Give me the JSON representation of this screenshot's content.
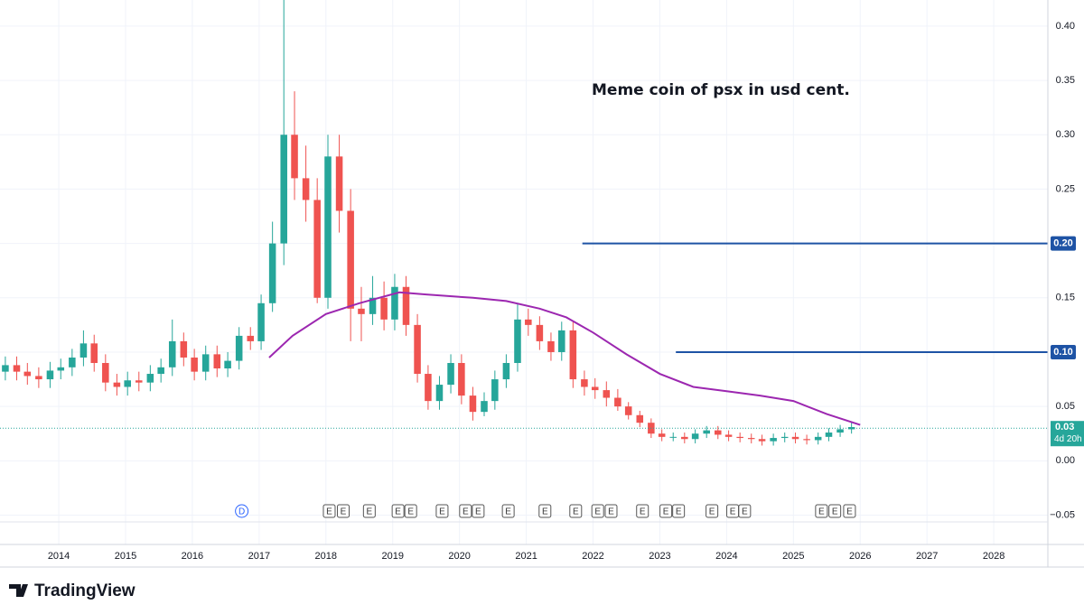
{
  "brand": "TradingView",
  "chart_data": {
    "type": "candlestick",
    "annotation": "Meme coin of psx in usd cent.",
    "colors": {
      "up": "#26a69a",
      "down": "#ef5350"
    },
    "x": [
      2013.2,
      2013.37,
      2013.53,
      2013.7,
      2013.87,
      2014.03,
      2014.2,
      2014.37,
      2014.53,
      2014.7,
      2014.87,
      2015.03,
      2015.2,
      2015.37,
      2015.53,
      2015.7,
      2015.87,
      2016.03,
      2016.2,
      2016.37,
      2016.53,
      2016.7,
      2016.87,
      2017.03,
      2017.2,
      2017.37,
      2017.53,
      2017.7,
      2017.87,
      2018.03,
      2018.2,
      2018.37,
      2018.53,
      2018.7,
      2018.87,
      2019.03,
      2019.2,
      2019.37,
      2019.53,
      2019.7,
      2019.87,
      2020.03,
      2020.2,
      2020.37,
      2020.53,
      2020.7,
      2020.87,
      2021.03,
      2021.2,
      2021.37,
      2021.53,
      2021.7,
      2021.87,
      2022.03,
      2022.2,
      2022.37,
      2022.53,
      2022.7,
      2022.87,
      2023.03,
      2023.2,
      2023.37,
      2023.53,
      2023.7,
      2023.87,
      2024.03,
      2024.2,
      2024.37,
      2024.53,
      2024.7,
      2024.87,
      2025.03,
      2025.2,
      2025.37,
      2025.53,
      2025.7,
      2025.87
    ],
    "open": [
      0.082,
      0.088,
      0.082,
      0.078,
      0.075,
      0.083,
      0.086,
      0.095,
      0.108,
      0.09,
      0.072,
      0.068,
      0.074,
      0.072,
      0.08,
      0.086,
      0.11,
      0.095,
      0.082,
      0.098,
      0.085,
      0.092,
      0.115,
      0.11,
      0.145,
      0.2,
      0.3,
      0.26,
      0.24,
      0.15,
      0.28,
      0.23,
      0.14,
      0.135,
      0.15,
      0.13,
      0.16,
      0.125,
      0.08,
      0.055,
      0.07,
      0.09,
      0.06,
      0.045,
      0.055,
      0.075,
      0.09,
      0.13,
      0.125,
      0.11,
      0.1,
      0.12,
      0.075,
      0.068,
      0.065,
      0.058,
      0.05,
      0.042,
      0.035,
      0.025,
      0.022,
      0.022,
      0.02,
      0.025,
      0.028,
      0.024,
      0.022,
      0.021,
      0.02,
      0.018,
      0.021,
      0.022,
      0.02,
      0.019,
      0.022,
      0.026,
      0.029
    ],
    "high": [
      0.096,
      0.096,
      0.09,
      0.086,
      0.091,
      0.094,
      0.103,
      0.12,
      0.116,
      0.098,
      0.08,
      0.082,
      0.082,
      0.088,
      0.094,
      0.13,
      0.118,
      0.103,
      0.106,
      0.106,
      0.1,
      0.123,
      0.123,
      0.153,
      0.22,
      0.43,
      0.34,
      0.29,
      0.26,
      0.3,
      0.3,
      0.25,
      0.16,
      0.17,
      0.165,
      0.172,
      0.17,
      0.135,
      0.088,
      0.078,
      0.098,
      0.098,
      0.068,
      0.063,
      0.083,
      0.098,
      0.145,
      0.14,
      0.133,
      0.118,
      0.128,
      0.128,
      0.083,
      0.076,
      0.073,
      0.066,
      0.054,
      0.046,
      0.039,
      0.029,
      0.026,
      0.026,
      0.029,
      0.032,
      0.032,
      0.028,
      0.026,
      0.025,
      0.024,
      0.025,
      0.026,
      0.026,
      0.024,
      0.026,
      0.03,
      0.033,
      0.036
    ],
    "low": [
      0.074,
      0.074,
      0.07,
      0.067,
      0.067,
      0.075,
      0.078,
      0.087,
      0.082,
      0.064,
      0.06,
      0.06,
      0.064,
      0.064,
      0.072,
      0.078,
      0.087,
      0.074,
      0.074,
      0.077,
      0.077,
      0.084,
      0.102,
      0.102,
      0.137,
      0.18,
      0.24,
      0.22,
      0.145,
      0.14,
      0.21,
      0.11,
      0.11,
      0.125,
      0.12,
      0.12,
      0.115,
      0.072,
      0.047,
      0.047,
      0.062,
      0.052,
      0.037,
      0.041,
      0.047,
      0.067,
      0.082,
      0.115,
      0.102,
      0.092,
      0.092,
      0.067,
      0.06,
      0.057,
      0.05,
      0.046,
      0.038,
      0.031,
      0.021,
      0.018,
      0.018,
      0.016,
      0.016,
      0.021,
      0.02,
      0.018,
      0.017,
      0.016,
      0.014,
      0.014,
      0.017,
      0.016,
      0.015,
      0.015,
      0.018,
      0.022,
      0.025
    ],
    "close": [
      0.088,
      0.082,
      0.078,
      0.075,
      0.083,
      0.086,
      0.095,
      0.108,
      0.09,
      0.072,
      0.068,
      0.074,
      0.072,
      0.08,
      0.086,
      0.11,
      0.095,
      0.082,
      0.098,
      0.085,
      0.092,
      0.115,
      0.11,
      0.145,
      0.2,
      0.3,
      0.26,
      0.24,
      0.15,
      0.28,
      0.23,
      0.14,
      0.135,
      0.15,
      0.13,
      0.16,
      0.125,
      0.08,
      0.055,
      0.07,
      0.09,
      0.06,
      0.045,
      0.055,
      0.075,
      0.09,
      0.13,
      0.125,
      0.11,
      0.1,
      0.12,
      0.075,
      0.068,
      0.065,
      0.058,
      0.05,
      0.042,
      0.035,
      0.025,
      0.022,
      0.022,
      0.02,
      0.025,
      0.028,
      0.024,
      0.022,
      0.021,
      0.02,
      0.018,
      0.021,
      0.022,
      0.02,
      0.019,
      0.022,
      0.026,
      0.029,
      0.031
    ],
    "moving_average": {
      "color": "#9c27b0",
      "x": [
        2017.15,
        2017.5,
        2018.0,
        2018.5,
        2019.1,
        2019.5,
        2020.2,
        2020.7,
        2021.2,
        2021.6,
        2022.0,
        2022.5,
        2023.0,
        2023.5,
        2024.0,
        2024.5,
        2025.0,
        2025.5,
        2026.0
      ],
      "values": [
        0.095,
        0.115,
        0.135,
        0.145,
        0.155,
        0.153,
        0.15,
        0.147,
        0.14,
        0.132,
        0.118,
        0.098,
        0.08,
        0.068,
        0.064,
        0.06,
        0.055,
        0.043,
        0.033
      ]
    },
    "levels": [
      {
        "value": 0.2,
        "label": "0.20",
        "start": 2021.84,
        "color": "#1e53a5"
      },
      {
        "value": 0.1,
        "label": "0.10",
        "start": 2023.24,
        "color": "#1e53a5"
      }
    ],
    "last_price": {
      "value": 0.03,
      "label": "0.03",
      "countdown": "4d 20h",
      "color": "#26a69a"
    },
    "events": [
      {
        "x": 2016.74,
        "label": "D"
      },
      {
        "x": 2018.05,
        "label": "E"
      },
      {
        "x": 2018.26,
        "label": "E"
      },
      {
        "x": 2018.65,
        "label": "E"
      },
      {
        "x": 2019.08,
        "label": "E"
      },
      {
        "x": 2019.27,
        "label": "E"
      },
      {
        "x": 2019.74,
        "label": "E"
      },
      {
        "x": 2020.09,
        "label": "E"
      },
      {
        "x": 2020.28,
        "label": "E"
      },
      {
        "x": 2020.73,
        "label": "E"
      },
      {
        "x": 2021.28,
        "label": "E"
      },
      {
        "x": 2021.74,
        "label": "E"
      },
      {
        "x": 2022.07,
        "label": "E"
      },
      {
        "x": 2022.27,
        "label": "E"
      },
      {
        "x": 2022.74,
        "label": "E"
      },
      {
        "x": 2023.09,
        "label": "E"
      },
      {
        "x": 2023.28,
        "label": "E"
      },
      {
        "x": 2023.78,
        "label": "E"
      },
      {
        "x": 2024.09,
        "label": "E"
      },
      {
        "x": 2024.27,
        "label": "E"
      },
      {
        "x": 2025.42,
        "label": "E"
      },
      {
        "x": 2025.62,
        "label": "E"
      },
      {
        "x": 2025.84,
        "label": "E"
      }
    ],
    "xlim": [
      2013.12,
      2028.81
    ],
    "xticks": [
      2014,
      2015,
      2016,
      2017,
      2018,
      2019,
      2020,
      2021,
      2022,
      2023,
      2024,
      2025,
      2026,
      2027,
      2028
    ],
    "ylim": [
      -0.077,
      0.424
    ],
    "yticks": [
      {
        "value": -0.05,
        "label": "−0.05"
      },
      {
        "value": 0,
        "label": "0.00"
      },
      0.05,
      {
        "value": 0.1,
        "label": "0.10"
      },
      0.15,
      {
        "value": 0.2,
        "label": "0.20"
      },
      0.25,
      {
        "value": 0.3,
        "label": "0.30"
      },
      0.35,
      {
        "value": 0.4,
        "label": "0.40"
      }
    ],
    "grid": true
  }
}
